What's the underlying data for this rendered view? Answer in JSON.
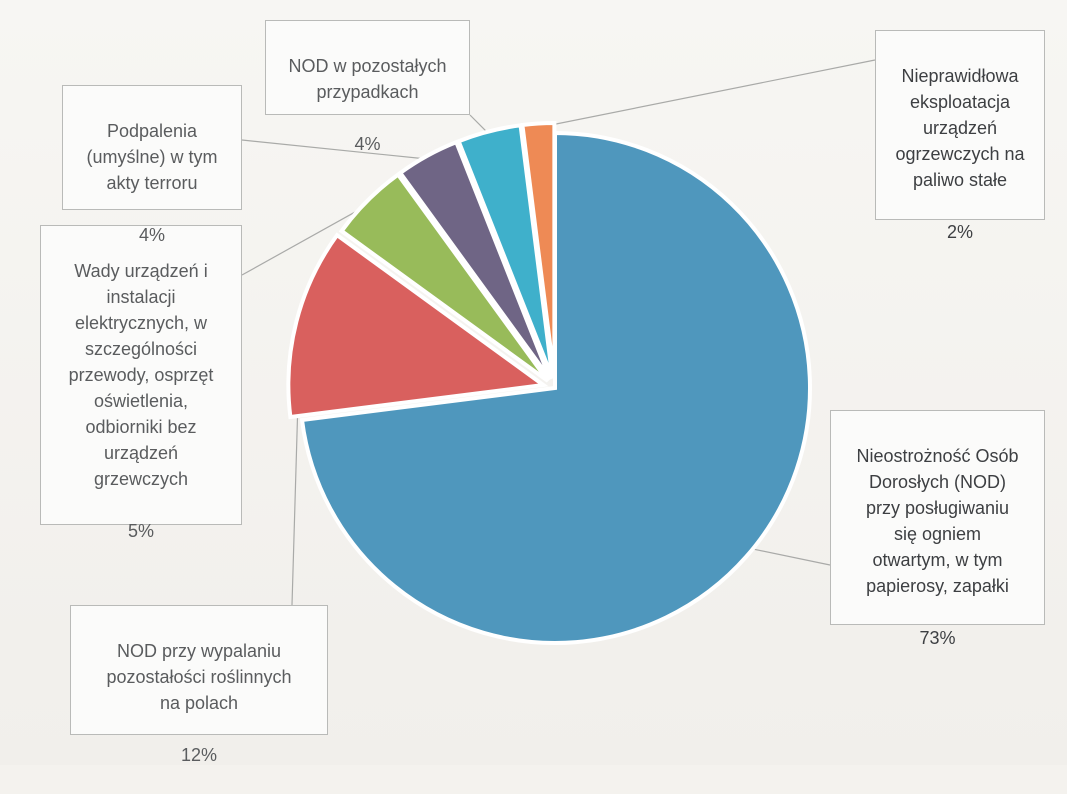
{
  "chart_data": {
    "type": "pie",
    "title": "",
    "slices": [
      {
        "label": "Nieostrożność Osób Dorosłych (NOD) przy posługiwaniu się ogniem otwartym, w tym papierosy, zapałki",
        "value": 73,
        "pct_label": "73%",
        "color": "#4f97bd"
      },
      {
        "label": "NOD przy wypalaniu pozostałości roślinnych na polach",
        "value": 12,
        "pct_label": "12%",
        "color": "#d9605e"
      },
      {
        "label": "Wady urządzeń i instalacji elektrycznych, w szczególności przewody, osprzęt oświetlenia, odbiorniki bez urządzeń grzewczych",
        "value": 5,
        "pct_label": "5%",
        "color": "#98bb5a"
      },
      {
        "label": "Podpalenia (umyślne) w tym akty terroru",
        "value": 4,
        "pct_label": "4%",
        "color": "#6f6585"
      },
      {
        "label": "NOD w pozostałych przypadkach",
        "value": 4,
        "pct_label": "4%",
        "color": "#3fb0cb"
      },
      {
        "label": "Nieprawidłowa eksploatacja urządzeń ogrzewczych na paliwo stałe",
        "value": 2,
        "pct_label": "2%",
        "color": "#ee8a55"
      }
    ],
    "legend": "none",
    "data_labels": "callouts"
  },
  "callouts": [
    {
      "text": "Nieostrożność Osób\nDorosłych (NOD)\nprzy posługiwaniu\nsię ogniem\notwartym, w tym\npapierosy, zapałki",
      "pct": "73%"
    },
    {
      "text": "NOD przy wypalaniu\npozostałości roślinnych\nna polach",
      "pct": "12%"
    },
    {
      "text": "Wady urządzeń i\ninstalacji\nelektrycznych, w\nszczególności\nprzewody, osprzęt\noświetlenia,\nodbiorniki bez\nurządzeń\ngrzewczych",
      "pct": "5%"
    },
    {
      "text": "Podpalenia\n(umyślne) w tym\nakty terroru",
      "pct": "4%"
    },
    {
      "text": "NOD w pozostałych\nprzypadkach",
      "pct": "4%"
    },
    {
      "text": "Nieprawidłowa\neksploatacja\nurządzeń\nogrzewczych na\npaliwo stałe",
      "pct": "2%"
    }
  ]
}
